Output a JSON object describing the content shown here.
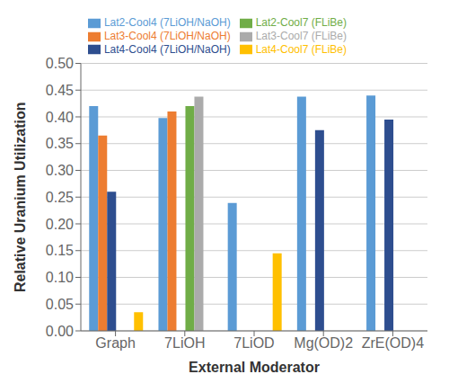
{
  "chart_data": {
    "type": "bar",
    "xlabel": "External Moderator",
    "ylabel": "Relative Uranium Utilization",
    "categories": [
      "Graph",
      "7LiOH",
      "7LiOD",
      "Mg(OD)2",
      "ZrE(OD)4"
    ],
    "series": [
      {
        "name": "Lat2-Cool4 (7LiOH/NaOH)",
        "color": "#5B9BD5",
        "values": [
          0.42,
          0.398,
          0.239,
          0.438,
          0.44
        ]
      },
      {
        "name": "Lat3-Cool4 (7LiOH/NaOH)",
        "color": "#ED7D31",
        "values": [
          0.365,
          0.41,
          null,
          null,
          null
        ]
      },
      {
        "name": "Lat4-Cool4 (7LiOH/NaOH)",
        "color": "#2E4E8F",
        "values": [
          0.26,
          null,
          null,
          0.375,
          0.395
        ]
      },
      {
        "name": "Lat2-Cool7 (FLiBe)",
        "color": "#70AD47",
        "values": [
          null,
          0.42,
          null,
          null,
          null
        ]
      },
      {
        "name": "Lat3-Cool7 (FLiBe)",
        "color": "#ABABAB",
        "values": [
          null,
          0.438,
          null,
          null,
          null
        ]
      },
      {
        "name": "Lat4-Cool7 (FLiBe)",
        "color": "#FFC000",
        "values": [
          0.035,
          null,
          0.145,
          null,
          null
        ]
      }
    ],
    "ylim": [
      0.0,
      0.5
    ],
    "yticks": [
      {
        "value": 0.0,
        "label": "0.00"
      },
      0.05,
      {
        "value": 0.1,
        "label": "0.10"
      },
      0.15,
      {
        "value": 0.2,
        "label": "0.20"
      },
      0.25,
      {
        "value": 0.3,
        "label": "0.30"
      },
      0.35,
      {
        "value": 0.4,
        "label": "0.40"
      },
      0.45,
      {
        "value": 0.5,
        "label": "0.50"
      }
    ],
    "grid": true,
    "legend": "top"
  }
}
